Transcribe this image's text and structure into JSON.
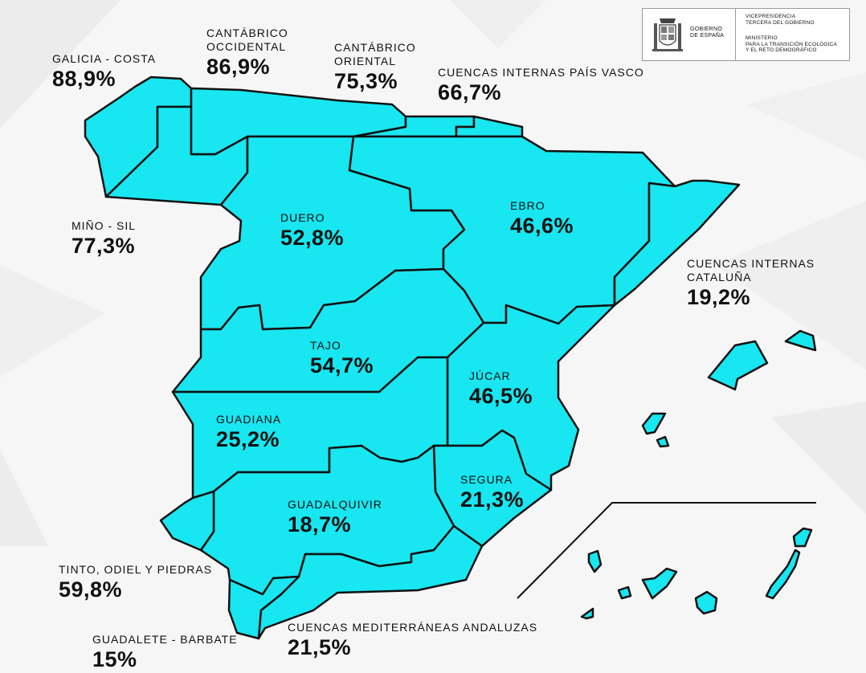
{
  "colors": {
    "basin_fill": "#18e6f0",
    "basin_stroke": "#111111",
    "background": "#f6f6f6",
    "text": "#111111"
  },
  "header": {
    "logo": {
      "gobierno": "GOBIERNO",
      "de_espana": "DE ESPAÑA",
      "vicepresidencia": "VICEPRESIDENCIA",
      "tercera": "TERCERA DEL GOBIERNO",
      "ministerio": "MINISTERIO",
      "para_la": "PARA LA TRANSICIÓN ECOLÓGICA",
      "reto": "Y EL RETO DEMOGRÁFICO"
    }
  },
  "basins": [
    {
      "id": "galicia-costa",
      "name": [
        "GALICIA - COSTA"
      ],
      "value": "88,9%"
    },
    {
      "id": "cantabrico-occidental",
      "name": [
        "CANTÁBRICO",
        "OCCIDENTAL"
      ],
      "value": "86,9%"
    },
    {
      "id": "cantabrico-oriental",
      "name": [
        "CANTÁBRICO",
        "ORIENTAL"
      ],
      "value": "75,3%"
    },
    {
      "id": "pais-vasco",
      "name": [
        "CUENCAS INTERNAS PAÍS VASCO"
      ],
      "value": "66,7%"
    },
    {
      "id": "mino-sil",
      "name": [
        "MIÑO - SIL"
      ],
      "value": "77,3%"
    },
    {
      "id": "duero",
      "name": [
        "DUERO"
      ],
      "value": "52,8%"
    },
    {
      "id": "ebro",
      "name": [
        "EBRO"
      ],
      "value": "46,6%"
    },
    {
      "id": "cataluna",
      "name": [
        "CUENCAS INTERNAS",
        "CATALUÑA"
      ],
      "value": "19,2%"
    },
    {
      "id": "tajo",
      "name": [
        "TAJO"
      ],
      "value": "54,7%"
    },
    {
      "id": "jucar",
      "name": [
        "JÚCAR"
      ],
      "value": "46,5%"
    },
    {
      "id": "guadiana",
      "name": [
        "GUADIANA"
      ],
      "value": "25,2%"
    },
    {
      "id": "segura",
      "name": [
        "SEGURA"
      ],
      "value": "21,3%"
    },
    {
      "id": "guadalquivir",
      "name": [
        "GUADALQUIVIR"
      ],
      "value": "18,7%"
    },
    {
      "id": "tinto-odiel-piedras",
      "name": [
        "TINTO, ODIEL Y PIEDRAS"
      ],
      "value": "59,8%"
    },
    {
      "id": "mediterraneas-andaluzas",
      "name": [
        "CUENCAS MEDITERRÁNEAS ANDALUZAS"
      ],
      "value": "21,5%"
    },
    {
      "id": "guadalete-barbate",
      "name": [
        "GUADALETE - BARBATE"
      ],
      "value": "15%"
    }
  ]
}
